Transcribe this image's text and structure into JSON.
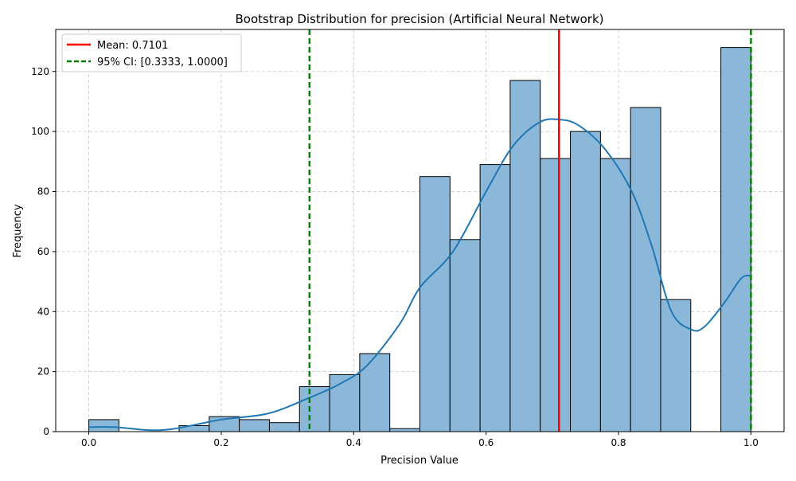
{
  "chart_data": {
    "type": "bar",
    "title": "Bootstrap Distribution for precision (Artificial Neural Network)",
    "xlabel": "Precision Value",
    "ylabel": "Frequency",
    "xlim": [
      -0.05,
      1.05
    ],
    "ylim": [
      0,
      134
    ],
    "xticks": [
      0.0,
      0.2,
      0.4,
      0.6,
      0.8,
      1.0
    ],
    "xtick_labels": [
      "0.0",
      "0.2",
      "0.4",
      "0.6",
      "0.8",
      "1.0"
    ],
    "yticks": [
      0,
      20,
      40,
      60,
      80,
      100,
      120
    ],
    "ytick_labels": [
      "0",
      "20",
      "40",
      "60",
      "80",
      "100",
      "120"
    ],
    "grid": true,
    "legend_position": "top-left",
    "bin_edges": [
      0.0,
      0.04545,
      0.09091,
      0.13636,
      0.18182,
      0.22727,
      0.27273,
      0.31818,
      0.36364,
      0.40909,
      0.45455,
      0.5,
      0.54545,
      0.59091,
      0.63636,
      0.68182,
      0.72727,
      0.77273,
      0.81818,
      0.86364,
      0.90909,
      0.95455,
      1.0
    ],
    "counts": [
      4,
      0,
      0,
      2,
      5,
      4,
      3,
      15,
      19,
      26,
      1,
      85,
      64,
      89,
      117,
      91,
      100,
      91,
      108,
      44,
      0,
      128
    ],
    "kde": {
      "x": [
        0.0,
        0.04,
        0.09,
        0.13,
        0.2,
        0.27,
        0.33,
        0.38,
        0.42,
        0.47,
        0.5,
        0.55,
        0.6,
        0.64,
        0.68,
        0.71,
        0.74,
        0.78,
        0.82,
        0.85,
        0.88,
        0.91,
        0.93,
        0.96,
        0.985,
        1.0
      ],
      "y": [
        1.5,
        1.5,
        0.5,
        1.0,
        4.0,
        6.0,
        11.0,
        16.0,
        22.0,
        36.0,
        48.0,
        60.0,
        80.0,
        95.0,
        103.0,
        104.0,
        102.0,
        94.0,
        80.0,
        62.0,
        40.0,
        34.0,
        35.0,
        43.0,
        51.0,
        52.0
      ]
    },
    "colors": {
      "bar_fill": "#8bb8d9",
      "bar_edge": "#000000",
      "kde_line": "#1f77b4",
      "mean_line": "#ff0000",
      "ci_line": "#008000",
      "grid": "#c8c8c8"
    },
    "reference_lines": {
      "mean": {
        "value": 0.7101,
        "label": "Mean: 0.7101"
      },
      "ci": {
        "values": [
          0.3333,
          1.0
        ],
        "label": "95% CI: [0.3333, 1.0000]"
      }
    }
  }
}
